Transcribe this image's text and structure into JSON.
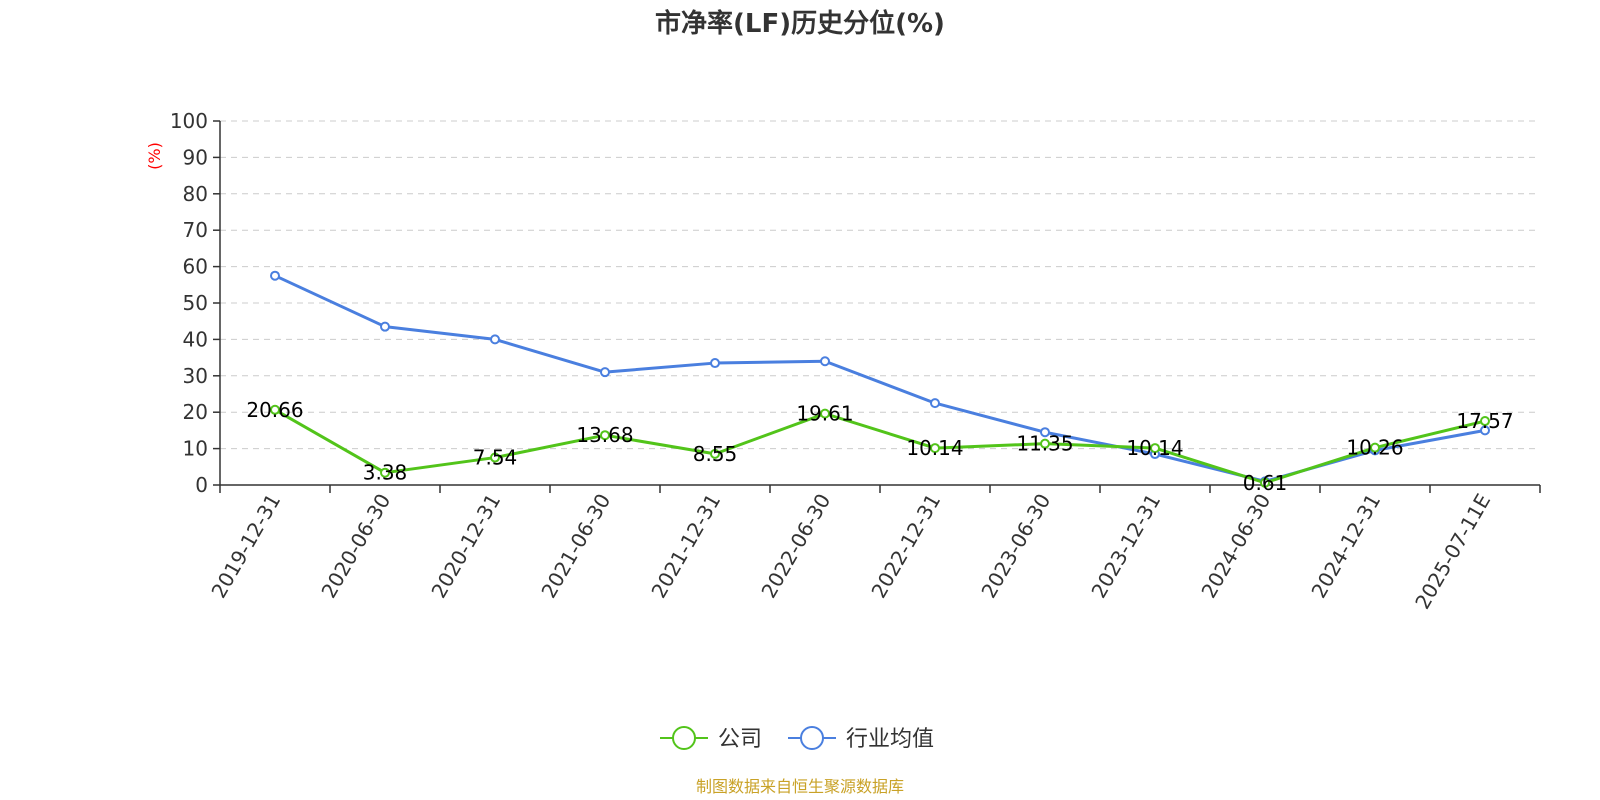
{
  "chart_data": {
    "type": "line",
    "title": "市净率(LF)历史分位(%)",
    "y_unit": "(%)",
    "ylim": [
      0,
      100
    ],
    "y_ticks": [
      "0",
      "10",
      "20",
      "30",
      "40",
      "50",
      "60",
      "70",
      "80",
      "90",
      "100"
    ],
    "grid": true,
    "categories": [
      "2019-12-31",
      "2020-06-30",
      "2020-12-31",
      "2021-06-30",
      "2021-12-31",
      "2022-06-30",
      "2022-12-31",
      "2023-06-30",
      "2023-12-31",
      "2024-06-30",
      "2024-12-31",
      "2025-07-11E"
    ],
    "series": [
      {
        "name": "公司",
        "color": "#52c41a",
        "values": [
          20.66,
          3.38,
          7.54,
          13.68,
          8.55,
          19.61,
          10.14,
          11.35,
          10.14,
          0.61,
          10.26,
          17.57
        ],
        "labels": [
          "20.66",
          "3.38",
          "7.54",
          "13.68",
          "8.55",
          "19.61",
          "10.14",
          "11.35",
          "10.14",
          "0.61",
          "10.26",
          "17.57"
        ]
      },
      {
        "name": "行业均值",
        "color": "#4a7fdf",
        "values": [
          57.5,
          43.5,
          40,
          31,
          33.5,
          34,
          22.5,
          14.5,
          8.5,
          1,
          9.5,
          15
        ]
      }
    ],
    "legend_position": "bottom-center",
    "source": "制图数据来自恒生聚源数据库"
  }
}
